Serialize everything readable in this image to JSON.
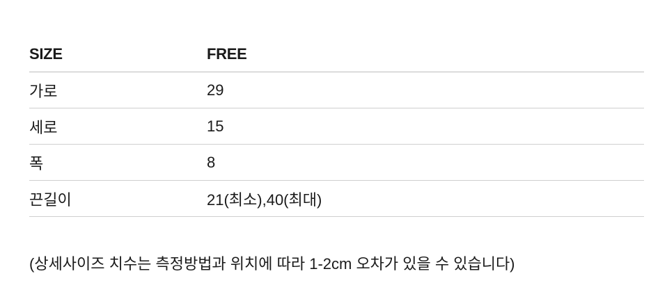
{
  "table": {
    "header": {
      "label": "SIZE",
      "value": "FREE"
    },
    "rows": [
      {
        "label": "가로",
        "value": "29"
      },
      {
        "label": "세로",
        "value": "15"
      },
      {
        "label": "폭",
        "value": "8"
      },
      {
        "label": "끈길이",
        "value": "21(최소),40(최대)"
      }
    ]
  },
  "note": "(상세사이즈 치수는 측정방법과 위치에 따라 1-2cm 오차가 있을 수 있습니다)"
}
